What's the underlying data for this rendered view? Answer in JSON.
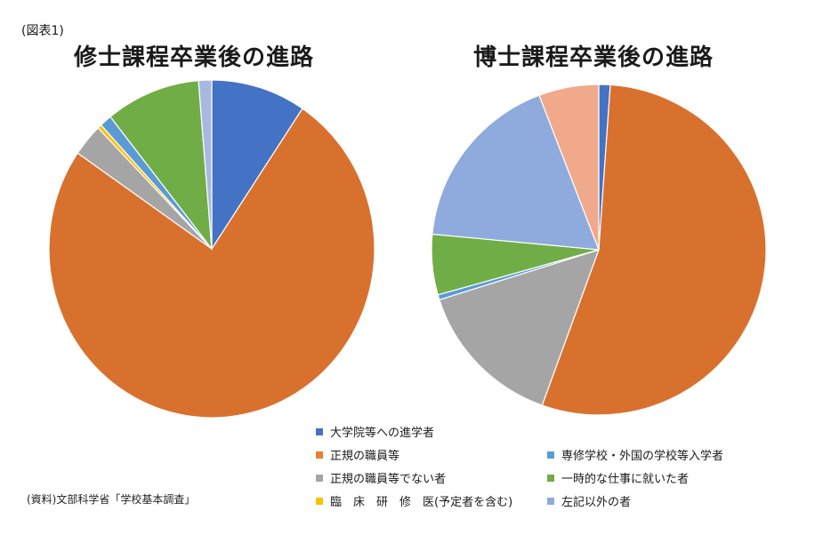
{
  "figure_label": "(図表1)",
  "source": "(資料)文部科学省「学校基本調査」",
  "legend": [
    {
      "label": "大学院等への進学者",
      "color": "#4472c4"
    },
    {
      "label": "正規の職員等",
      "color": "#ed7d31"
    },
    {
      "label": "専修学校・外国の学校等入学者",
      "color": "#5b9bd5"
    },
    {
      "label": "正規の職員等でない者",
      "color": "#a5a5a5"
    },
    {
      "label": "一時的な仕事に就いた者",
      "color": "#70ad47"
    },
    {
      "label": "臨　床　研　修　医(予定者を含む)",
      "color": "#ffc000"
    },
    {
      "label": "左記以外の者",
      "color": "#8faadc"
    }
  ],
  "chart_data": [
    {
      "type": "pie",
      "title": "修士課程卒業後の進路",
      "categories": [
        "大学院等への進学者",
        "正規の職員等",
        "正規の職員等でない者",
        "臨床研修医(予定者を含む)",
        "専修学校・外国の学校等入学者",
        "一時的な仕事に就いた者",
        "左記以外の者"
      ],
      "values": [
        9.4,
        75.2,
        3.1,
        0.4,
        1.2,
        9.4,
        1.3
      ],
      "colors": [
        "#4472c4",
        "#d9712e",
        "#a5a5a5",
        "#ffc000",
        "#5b9bd5",
        "#70ad47",
        "#a9b8e0"
      ]
    },
    {
      "type": "pie",
      "title": "博士課程卒業後の進路",
      "categories": [
        "大学院等への進学者",
        "正規の職員等",
        "正規の職員等でない者",
        "専修学校・外国の学校等入学者",
        "一時的な仕事に就いた者",
        "左記以外の者",
        "臨床研修医(予定者を含む)"
      ],
      "values": [
        1.1,
        54.4,
        14.6,
        0.5,
        5.9,
        17.7,
        5.8
      ],
      "colors": [
        "#4472c4",
        "#d9712e",
        "#a5a5a5",
        "#5b9bd5",
        "#70ad47",
        "#8faadc",
        "#f0a98a"
      ]
    }
  ]
}
